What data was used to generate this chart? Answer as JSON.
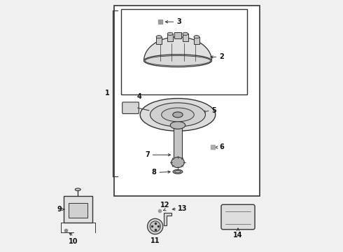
{
  "bg_color": "#f0f0f0",
  "box_color": "#333333",
  "label_color": "#111111"
}
